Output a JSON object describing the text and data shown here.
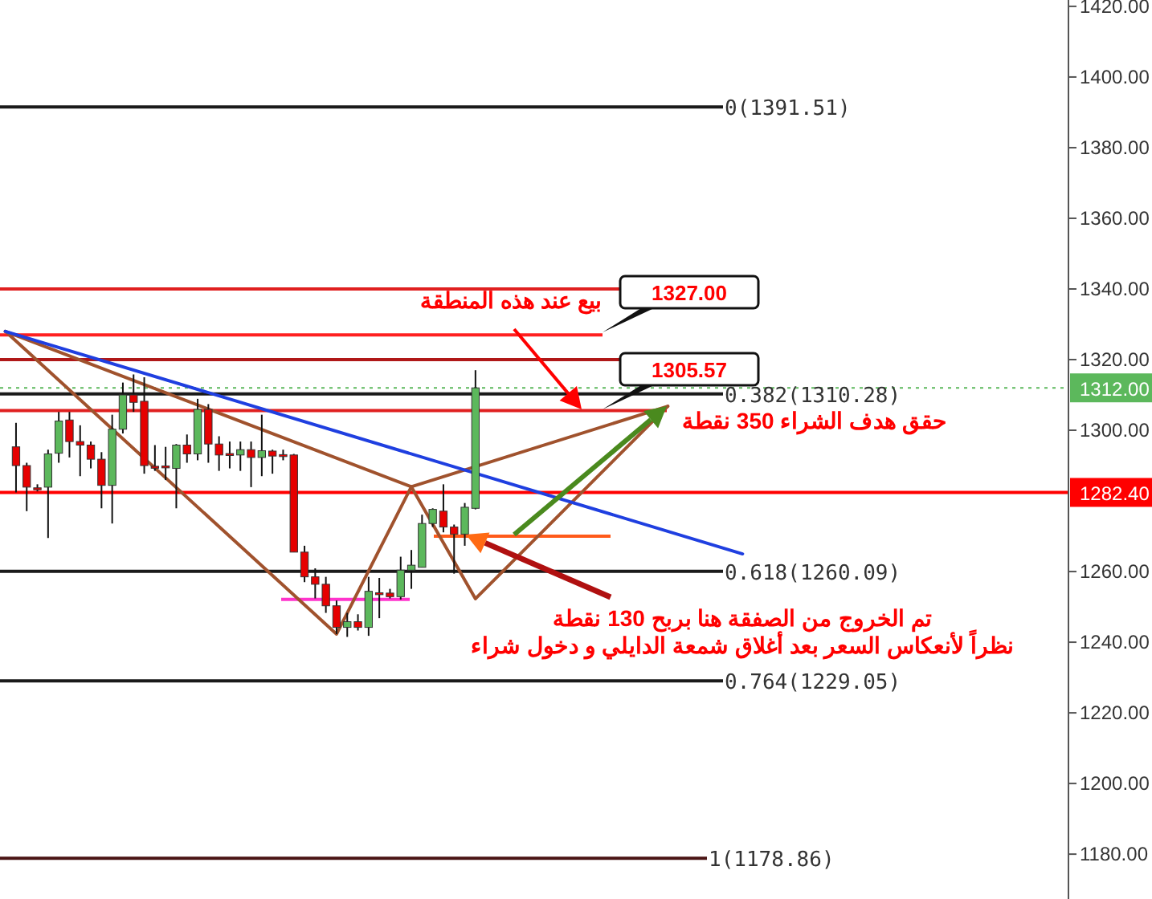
{
  "chart_data": {
    "type": "candlestick",
    "categories": [
      null,
      null,
      null,
      null,
      null,
      null,
      null,
      null,
      null,
      null,
      null,
      null,
      null,
      null,
      null,
      null,
      null,
      null,
      null,
      null,
      null,
      null,
      null,
      null,
      null,
      null,
      null,
      null,
      null,
      null,
      null,
      null,
      null,
      null,
      null,
      null,
      null,
      null,
      null,
      null,
      null,
      null,
      null,
      null,
      null,
      null,
      null,
      null,
      null,
      null,
      null,
      null,
      null,
      null,
      null,
      null,
      null,
      null,
      null,
      null,
      null,
      null,
      null,
      null,
      null,
      null,
      null,
      null,
      null,
      null,
      null,
      null,
      null,
      null,
      null,
      null,
      null,
      null,
      null,
      null,
      null,
      null,
      null,
      null,
      null,
      null,
      null,
      null,
      null,
      null,
      null,
      null,
      null,
      null,
      null,
      null,
      null,
      null,
      null,
      null
    ],
    "ohlc": [
      null,
      [
        1295.3,
        1302.1,
        1282.4,
        1290.0
      ],
      [
        1290.0,
        1290.8,
        1277.1,
        1283.9
      ],
      [
        1283.7,
        1284.7,
        1282.7,
        1283.5
      ],
      [
        1283.9,
        1294.5,
        1269.5,
        1293.3
      ],
      [
        1293.5,
        1305.2,
        1290.8,
        1302.6
      ],
      [
        1302.9,
        1305.2,
        1292.3,
        1296.8
      ],
      [
        1296.8,
        1301.4,
        1287.0,
        1295.8
      ],
      [
        1295.8,
        1296.8,
        1289.2,
        1291.8
      ],
      [
        1291.8,
        1293.8,
        1277.9,
        1284.4
      ],
      [
        1284.4,
        1304.4,
        1273.6,
        1300.3
      ],
      [
        1300.3,
        1313.5,
        1299.1,
        1310.0
      ],
      [
        1310.0,
        1315.8,
        1305.2,
        1307.9
      ],
      [
        1308.2,
        1315.0,
        1287.7,
        1290.0
      ],
      [
        1289.8,
        1295.8,
        1288.5,
        1289.6
      ],
      [
        1289.9,
        1295.3,
        1285.9,
        1289.5
      ],
      [
        1289.2,
        1296.1,
        1277.9,
        1295.8
      ],
      [
        1295.8,
        1298.8,
        1290.8,
        1293.3
      ],
      [
        1293.3,
        1308.9,
        1291.5,
        1305.9
      ],
      [
        1305.9,
        1307.4,
        1290.8,
        1296.1
      ],
      [
        1296.1,
        1298.3,
        1288.5,
        1293.0
      ],
      [
        1293.4,
        1296.8,
        1289.2,
        1293.2
      ],
      [
        1293.0,
        1296.8,
        1288.5,
        1294.5
      ],
      [
        1294.5,
        1296.8,
        1283.9,
        1292.3
      ],
      [
        1292.3,
        1304.4,
        1287.0,
        1294.2
      ],
      [
        1294.1,
        1294.5,
        1287.7,
        1292.7
      ],
      [
        1293.1,
        1294.5,
        1291.5,
        1292.9
      ],
      [
        1293.0,
        1293.3,
        1265.5,
        1265.5
      ],
      [
        1265.5,
        1267.3,
        1257.0,
        1258.5
      ],
      [
        1258.5,
        1260.9,
        1252.4,
        1256.4
      ],
      [
        1256.4,
        1258.5,
        1248.3,
        1250.3
      ],
      [
        1250.3,
        1251.8,
        1242.3,
        1244.2
      ],
      [
        1244.2,
        1248.3,
        1241.5,
        1245.8
      ],
      [
        1245.8,
        1247.9,
        1243.3,
        1244.2
      ],
      [
        1244.2,
        1258.5,
        1241.8,
        1254.4
      ],
      [
        1254.0,
        1258.2,
        1246.8,
        1253.9
      ],
      [
        1253.9,
        1255.1,
        1252.4,
        1252.9
      ],
      [
        1252.9,
        1264.2,
        1252.1,
        1260.4
      ],
      [
        1260.4,
        1266.1,
        1255.1,
        1261.8
      ],
      [
        1261.2,
        1276.1,
        1261.2,
        1273.6
      ],
      [
        1273.6,
        1277.9,
        1272.6,
        1277.6
      ],
      [
        1277.1,
        1284.7,
        1271.1,
        1272.6
      ],
      [
        1272.6,
        1273.3,
        1259.4,
        1270.6
      ],
      [
        1270.6,
        1279.4,
        1267.3,
        1278.2
      ],
      [
        1277.9,
        1317.0,
        1277.6,
        1312.0
      ],
      null,
      null,
      null,
      null,
      null,
      null,
      null,
      null,
      null,
      null,
      null,
      null,
      null,
      null,
      null,
      null,
      null,
      null,
      null,
      null,
      null,
      null,
      null,
      null,
      null,
      null,
      null,
      null,
      null,
      null,
      null,
      null,
      null,
      null,
      null,
      null,
      null,
      null,
      null,
      null,
      null,
      null,
      null,
      null,
      null,
      null,
      null,
      null,
      null,
      null,
      null,
      null,
      null,
      null,
      null
    ],
    "colors": [
      null,
      "#e60000",
      "#e60000",
      "#e60000",
      "#5cb85c",
      "#5cb85c",
      "#e60000",
      "#e60000",
      "#e60000",
      "#e60000",
      "#5cb85c",
      "#5cb85c",
      "#e60000",
      "#e60000",
      "#e60000",
      "#e60000",
      "#5cb85c",
      "#e60000",
      "#5cb85c",
      "#e60000",
      "#e60000",
      "#e60000",
      "#5cb85c",
      "#e60000",
      "#5cb85c",
      "#e60000",
      "#e60000",
      "#e60000",
      "#e60000",
      "#e60000",
      "#e60000",
      "#e60000",
      "#5cb85c",
      "#e60000",
      "#5cb85c",
      "#e60000",
      "#e60000",
      "#5cb85c",
      "#5cb85c",
      "#5cb85c",
      "#5cb85c",
      "#e60000",
      "#e60000",
      "#5cb85c",
      "#5cb85c",
      null,
      null,
      null,
      null,
      null,
      null,
      null,
      null,
      null,
      null,
      null,
      null,
      null,
      null,
      null,
      null,
      null,
      null,
      null,
      null,
      null,
      null,
      null,
      null,
      null,
      null,
      null,
      null,
      null,
      null,
      null,
      null,
      null,
      null,
      null,
      null,
      null,
      null,
      null,
      null,
      null,
      null,
      null,
      null,
      null,
      null,
      null,
      null,
      null,
      null,
      null,
      null,
      null,
      null,
      null
    ],
    "ylim": [
      1167.3,
      1421.8
    ],
    "yticks": [
      {
        "value": 1180,
        "label": "1180.00"
      },
      {
        "value": 1200,
        "label": "1200.00"
      },
      {
        "value": 1220,
        "label": "1220.00"
      },
      {
        "value": 1240,
        "label": "1240.00"
      },
      {
        "value": 1260,
        "label": "1260.00"
      },
      {
        "value": 1300,
        "label": "1300.00"
      },
      {
        "value": 1320,
        "label": "1320.00"
      },
      {
        "value": 1340,
        "label": "1340.00"
      },
      {
        "value": 1360,
        "label": "1360.00"
      },
      {
        "value": 1380,
        "label": "1380.00"
      },
      {
        "value": 1400,
        "label": "1400.00"
      },
      {
        "value": 1420,
        "label": "1420.00"
      }
    ],
    "tick_labels": "y",
    "series": [
      {
        "type": "line",
        "color": "#a0522d",
        "values": [
          1328,
          null,
          null,
          null,
          null,
          null,
          null,
          null,
          null,
          null,
          null,
          null,
          null,
          null,
          null,
          null,
          null,
          null,
          null,
          null,
          null,
          null,
          null,
          null,
          null,
          null,
          null,
          null,
          null,
          null,
          null,
          1242.3,
          null,
          null,
          null,
          null,
          null,
          null,
          1284,
          null,
          null,
          null,
          null,
          null,
          1252.3,
          null,
          null,
          null,
          null,
          null,
          null,
          null,
          null,
          null,
          null,
          null,
          null,
          null,
          null,
          null,
          null,
          null,
          1306.8,
          null,
          null,
          null,
          null,
          null,
          null,
          null,
          null,
          null,
          null,
          null,
          null,
          null,
          null,
          null,
          null,
          null,
          null,
          null,
          null,
          null,
          null,
          null,
          null,
          null,
          null,
          null,
          null,
          null,
          null,
          null,
          null,
          null,
          null,
          null,
          null,
          null
        ]
      },
      {
        "type": "line",
        "color": "#a0522d",
        "values": [
          1328,
          null,
          null,
          null,
          null,
          null,
          null,
          null,
          null,
          null,
          null,
          null,
          null,
          null,
          null,
          null,
          null,
          null,
          null,
          null,
          null,
          null,
          null,
          null,
          null,
          null,
          null,
          null,
          null,
          null,
          null,
          null,
          null,
          null,
          null,
          null,
          null,
          null,
          1284,
          null,
          null,
          null,
          null,
          null,
          null,
          null,
          null,
          null,
          null,
          null,
          null,
          null,
          null,
          null,
          null,
          null,
          null,
          null,
          null,
          null,
          null,
          null,
          null,
          null,
          null,
          null,
          null,
          null,
          null,
          null,
          null,
          null,
          null,
          null,
          null,
          null,
          null,
          null,
          null,
          null,
          null,
          null,
          null,
          null,
          null,
          null,
          null,
          null,
          null,
          null,
          null,
          null,
          null,
          null,
          null,
          null,
          null,
          null,
          null,
          null
        ]
      },
      {
        "type": "line",
        "color": "#a0522d",
        "values": [
          null,
          null,
          null,
          null,
          null,
          null,
          null,
          null,
          null,
          null,
          null,
          null,
          null,
          null,
          null,
          null,
          null,
          null,
          null,
          null,
          null,
          null,
          null,
          null,
          null,
          null,
          null,
          null,
          null,
          null,
          null,
          null,
          null,
          null,
          null,
          null,
          null,
          null,
          1284,
          null,
          null,
          null,
          null,
          null,
          null,
          null,
          null,
          null,
          null,
          null,
          null,
          null,
          null,
          null,
          null,
          null,
          null,
          null,
          null,
          null,
          null,
          null,
          1306.8,
          null,
          null,
          null,
          null,
          null,
          null,
          null,
          null,
          null,
          null,
          null,
          null,
          null,
          null,
          null,
          null,
          null,
          null,
          null,
          null,
          null,
          null,
          null,
          null,
          null,
          null,
          null,
          null,
          null,
          null,
          null,
          null,
          null,
          null,
          null,
          null,
          null
        ]
      },
      {
        "type": "line",
        "color": "#1f3fe0",
        "values": [
          1328,
          null,
          null,
          null,
          null,
          null,
          null,
          null,
          null,
          null,
          null,
          null,
          null,
          null,
          null,
          null,
          null,
          null,
          null,
          null,
          null,
          null,
          null,
          null,
          null,
          null,
          null,
          null,
          null,
          null,
          null,
          null,
          null,
          null,
          null,
          null,
          null,
          null,
          null,
          null,
          null,
          null,
          null,
          null,
          null,
          null,
          null,
          null,
          null,
          null,
          null,
          null,
          null,
          null,
          null,
          null,
          null,
          null,
          null,
          null,
          null,
          null,
          null,
          null,
          null,
          null,
          null,
          null,
          null,
          1265.0,
          null,
          null,
          null,
          null,
          null,
          null,
          null,
          null,
          null,
          null,
          null,
          null,
          null,
          null,
          null,
          null,
          null,
          null,
          null,
          null,
          null,
          null,
          null,
          null,
          null,
          null,
          null,
          null,
          null,
          null
        ]
      }
    ],
    "ref_lines": [
      {
        "axis": "y",
        "value": 1391.51,
        "label": "0(1391.51)",
        "color": "#1a1a1a"
      },
      {
        "axis": "y",
        "value": 1310.28,
        "label": "0.382(1310.28)",
        "color": "#1a1a1a"
      },
      {
        "axis": "y",
        "value": 1260.09,
        "label": "0.618(1260.09)",
        "color": "#1a1a1a"
      },
      {
        "axis": "y",
        "value": 1229.05,
        "label": "0.764(1229.05)",
        "color": "#1a1a1a"
      },
      {
        "axis": "y",
        "value": 1178.86,
        "label": "1(1178.86)",
        "color": "#4a1414"
      },
      {
        "axis": "y",
        "value": 1340,
        "color": "#e02020"
      },
      {
        "axis": "y",
        "value": 1327,
        "color": "#ff2020"
      },
      {
        "axis": "y",
        "value": 1320,
        "color": "#b01818"
      },
      {
        "axis": "y",
        "value": 1305.57,
        "color": "#e02020"
      },
      {
        "axis": "y",
        "value": 1252.1,
        "color": "#ff33cc"
      },
      {
        "axis": "y",
        "value": 1270,
        "color": "#ff5a1a"
      },
      {
        "axis": "y",
        "value": 1282.4,
        "label": "1282.40",
        "color": "#ff0000"
      },
      {
        "axis": "y",
        "value": 1312.0,
        "label": "1312.00",
        "color": "#5cb85c",
        "line_style": "dotted"
      }
    ],
    "annotations": [
      "بيع عند هذه المنطقة",
      "حقق هدف الشراء 350 نقطة",
      "تم الخروج من الصفقة هنا بربح 130 نقطة\nنظراً لأنعكاس السعر بعد أغلاق شمعة الدايلي و دخول شراء",
      "1327.00",
      "1305.57"
    ]
  }
}
